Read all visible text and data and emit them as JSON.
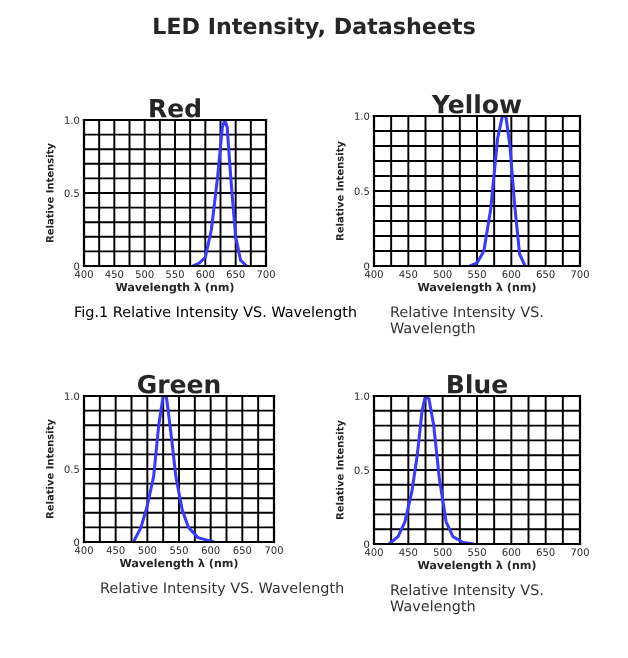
{
  "chart_data": [
    {
      "type": "line",
      "title": "Red",
      "xlabel": "Wavelength λ (nm)",
      "ylabel": "Relative Intensity",
      "annotations": [
        "LED Intensity, Datasheets",
        "Fig.1 Relative Intensity VS. Wavelength"
      ],
      "xlim": [
        400,
        700
      ],
      "ylim": [
        0,
        1
      ],
      "xticks": [
        400,
        {
          "value": 425,
          "label": null
        },
        450,
        {
          "value": 475,
          "label": null
        },
        500,
        {
          "value": 525,
          "label": null
        },
        550,
        {
          "value": 575,
          "label": null
        },
        600,
        {
          "value": 625,
          "label": null
        },
        650,
        {
          "value": 675,
          "label": null
        },
        700
      ],
      "yticks": [
        0,
        {
          "value": 0.1,
          "label": null
        },
        {
          "value": 0.2,
          "label": null
        },
        {
          "value": 0.3,
          "label": null
        },
        {
          "value": 0.4,
          "label": null
        },
        0.5,
        {
          "value": 0.6,
          "label": null
        },
        {
          "value": 0.7,
          "label": null
        },
        {
          "value": 0.8,
          "label": null
        },
        {
          "value": 0.9,
          "label": null
        },
        {
          "value": 1,
          "label": "1.0"
        }
      ],
      "grid": true,
      "series": [
        {
          "color": "#3a3aff",
          "x": [
            580,
            590,
            600,
            610,
            620,
            628,
            632,
            636,
            642,
            650,
            658,
            668
          ],
          "values": [
            0,
            0.02,
            0.06,
            0.25,
            0.6,
            0.95,
            1.0,
            0.95,
            0.6,
            0.2,
            0.04,
            0
          ]
        }
      ]
    },
    {
      "type": "line",
      "title": "Yellow",
      "xlabel": "Wavelength λ (nm)",
      "ylabel": "Relative Intensity",
      "annotations": [
        "Relative Intensity VS. Wavelength"
      ],
      "xlim": [
        400,
        700
      ],
      "ylim": [
        0,
        1
      ],
      "xticks": [
        400,
        {
          "value": 425,
          "label": null
        },
        450,
        {
          "value": 475,
          "label": null
        },
        500,
        {
          "value": 525,
          "label": null
        },
        550,
        {
          "value": 575,
          "label": null
        },
        600,
        {
          "value": 625,
          "label": null
        },
        650,
        {
          "value": 675,
          "label": null
        },
        700
      ],
      "yticks": [
        0,
        {
          "value": 0.1,
          "label": null
        },
        {
          "value": 0.2,
          "label": null
        },
        {
          "value": 0.3,
          "label": null
        },
        {
          "value": 0.4,
          "label": null
        },
        0.5,
        {
          "value": 0.6,
          "label": null
        },
        {
          "value": 0.7,
          "label": null
        },
        {
          "value": 0.8,
          "label": null
        },
        {
          "value": 0.9,
          "label": null
        },
        {
          "value": 1,
          "label": "1.0"
        }
      ],
      "grid": true,
      "series": [
        {
          "color": "#3a3aff",
          "x": [
            540,
            550,
            560,
            570,
            580,
            587,
            592,
            598,
            605,
            612,
            620
          ],
          "values": [
            0,
            0.02,
            0.1,
            0.38,
            0.85,
            1.0,
            1.0,
            0.8,
            0.4,
            0.08,
            0
          ]
        }
      ]
    },
    {
      "type": "line",
      "title": "Green",
      "xlabel": "Wavelength λ (nm)",
      "ylabel": "Relative Intensity",
      "annotations": [
        "Relative Intensity VS. Wavelength"
      ],
      "xlim": [
        400,
        700
      ],
      "ylim": [
        0,
        1
      ],
      "xticks": [
        400,
        {
          "value": 425,
          "label": null
        },
        450,
        {
          "value": 475,
          "label": null
        },
        500,
        {
          "value": 525,
          "label": null
        },
        550,
        {
          "value": 575,
          "label": null
        },
        600,
        {
          "value": 625,
          "label": null
        },
        650,
        {
          "value": 675,
          "label": null
        },
        700
      ],
      "yticks": [
        0,
        {
          "value": 0.1,
          "label": null
        },
        {
          "value": 0.2,
          "label": null
        },
        {
          "value": 0.3,
          "label": null
        },
        {
          "value": 0.4,
          "label": null
        },
        0.5,
        {
          "value": 0.6,
          "label": null
        },
        {
          "value": 0.7,
          "label": null
        },
        {
          "value": 0.8,
          "label": null
        },
        {
          "value": 0.9,
          "label": null
        },
        {
          "value": 1,
          "label": "1.0"
        }
      ],
      "grid": true,
      "series": [
        {
          "color": "#3a3aff",
          "x": [
            478,
            490,
            500,
            510,
            518,
            525,
            530,
            538,
            545,
            555,
            565,
            580,
            605
          ],
          "values": [
            0,
            0.1,
            0.25,
            0.45,
            0.8,
            1.0,
            1.0,
            0.72,
            0.45,
            0.22,
            0.1,
            0.03,
            0
          ]
        }
      ]
    },
    {
      "type": "line",
      "title": "Blue",
      "xlabel": "Wavelength λ (nm)",
      "ylabel": "Relative Intensity",
      "annotations": [
        "Relative Intensity VS. Wavelength"
      ],
      "xlim": [
        400,
        700
      ],
      "ylim": [
        0,
        1
      ],
      "xticks": [
        400,
        {
          "value": 425,
          "label": null
        },
        450,
        {
          "value": 475,
          "label": null
        },
        500,
        {
          "value": 525,
          "label": null
        },
        550,
        {
          "value": 575,
          "label": null
        },
        600,
        {
          "value": 625,
          "label": null
        },
        650,
        {
          "value": 675,
          "label": null
        },
        700
      ],
      "yticks": [
        0,
        {
          "value": 0.1,
          "label": null
        },
        {
          "value": 0.2,
          "label": null
        },
        {
          "value": 0.3,
          "label": null
        },
        {
          "value": 0.4,
          "label": null
        },
        0.5,
        {
          "value": 0.6,
          "label": null
        },
        {
          "value": 0.7,
          "label": null
        },
        {
          "value": 0.8,
          "label": null
        },
        {
          "value": 0.9,
          "label": null
        },
        {
          "value": 1,
          "label": "1.0"
        }
      ],
      "grid": true,
      "series": [
        {
          "color": "#3a3aff",
          "x": [
            422,
            435,
            445,
            455,
            463,
            470,
            475,
            480,
            487,
            495,
            505,
            515,
            530,
            545
          ],
          "values": [
            0,
            0.05,
            0.15,
            0.35,
            0.6,
            0.9,
            1.0,
            0.98,
            0.8,
            0.45,
            0.15,
            0.05,
            0.01,
            0
          ]
        }
      ]
    }
  ]
}
